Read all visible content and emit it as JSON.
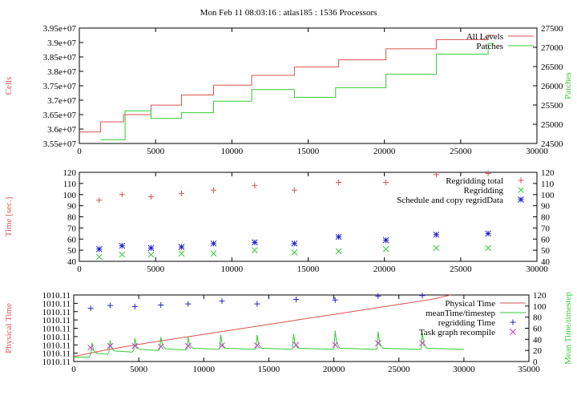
{
  "title": "Mon Feb 11 08:03:16 : atlas185 : 1536 Processors",
  "colors": {
    "red": "#d9534f",
    "green": "#33cc33",
    "blue": "#2222cc",
    "magenta": "#cc33cc",
    "axis": "#000000"
  },
  "chart_data": [
    {
      "type": "line",
      "ylabel": "Cells",
      "y2label": "Patches",
      "xlim": [
        0,
        30000
      ],
      "ylim": [
        35500000,
        39500000
      ],
      "y2lim": [
        24500,
        27500
      ],
      "xticks": [
        "0",
        "5000",
        "10000",
        "15000",
        "20000",
        "25000",
        "30000"
      ],
      "yticks": [
        "3.55e+07",
        "3.6e+07",
        "3.65e+07",
        "3.7e+07",
        "3.75e+07",
        "3.8e+07",
        "3.85e+07",
        "3.9e+07",
        "3.95e+07"
      ],
      "y2ticks": [
        "24500",
        "25000",
        "25500",
        "26000",
        "26500",
        "27000",
        "27500"
      ],
      "grid": false,
      "legend_position": "top-right",
      "series": [
        {
          "name": "All Levels",
          "axis": "y",
          "color": "#d9534f",
          "x": [
            0,
            1400,
            1400,
            2900,
            2900,
            4700,
            4700,
            6700,
            6700,
            8800,
            8800,
            11300,
            11300,
            14100,
            14100,
            17000,
            17000,
            20100,
            20100,
            23400,
            23400,
            26800,
            26800,
            27200
          ],
          "y": [
            35900000,
            35900000,
            36250000,
            36250000,
            36500000,
            36500000,
            36830000,
            36830000,
            37180000,
            37180000,
            37520000,
            37520000,
            37860000,
            37860000,
            38150000,
            38150000,
            38400000,
            38400000,
            38780000,
            38780000,
            39100000,
            39100000,
            39250000,
            39250000
          ]
        },
        {
          "name": "Patches",
          "axis": "y2",
          "color": "#33cc33",
          "x": [
            1400,
            3000,
            3000,
            4700,
            4700,
            6700,
            6700,
            8800,
            8800,
            11300,
            11300,
            14100,
            14100,
            16800,
            16800,
            20100,
            20100,
            23400,
            23400,
            26800,
            26800,
            27200
          ],
          "y": [
            24600,
            24600,
            25350,
            25350,
            25150,
            25150,
            25300,
            25300,
            25600,
            25600,
            25900,
            25900,
            25700,
            25700,
            25950,
            25950,
            26300,
            26300,
            26820,
            26820,
            27100,
            27100
          ]
        }
      ]
    },
    {
      "type": "scatter",
      "ylabel": "Time [sec.]",
      "xlim": [
        0,
        30000
      ],
      "ylim": [
        40,
        120
      ],
      "y2lim": [
        40,
        120
      ],
      "xticks": [
        "0",
        "5000",
        "10000",
        "15000",
        "20000",
        "25000",
        "30000"
      ],
      "yticks": [
        "40",
        "50",
        "60",
        "70",
        "80",
        "90",
        "100",
        "110",
        "120"
      ],
      "y2ticks": [
        "40",
        "50",
        "60",
        "70",
        "80",
        "90",
        "100",
        "110",
        "120"
      ],
      "grid": false,
      "legend_position": "top-right",
      "series": [
        {
          "name": "Regridding total",
          "marker": "plus",
          "color": "#d9534f",
          "x": [
            1300,
            2800,
            4700,
            6700,
            8800,
            11500,
            14100,
            17000,
            20100,
            23400,
            26800
          ],
          "y": [
            95,
            100,
            98,
            101,
            104,
            108,
            104,
            111,
            111,
            118,
            119
          ]
        },
        {
          "name": "Regridding",
          "marker": "cross",
          "color": "#33cc33",
          "x": [
            1300,
            2800,
            4700,
            6700,
            8800,
            11500,
            14100,
            17000,
            20100,
            23400,
            26800
          ],
          "y": [
            44,
            46,
            46,
            47,
            47,
            50,
            48,
            49,
            51,
            52,
            52
          ]
        },
        {
          "name": "Schedule and copy regridData",
          "marker": "star",
          "color": "#2222cc",
          "x": [
            1300,
            2800,
            4700,
            6700,
            8800,
            11500,
            14100,
            17000,
            20100,
            23400,
            26800
          ],
          "y": [
            51,
            54,
            52,
            53,
            56,
            57,
            56,
            62,
            59,
            64,
            65
          ]
        }
      ]
    },
    {
      "type": "line",
      "ylabel": "Physical Time",
      "y2label": "Mean Time/timestep",
      "xlim": [
        0,
        35000
      ],
      "y2lim": [
        0,
        120
      ],
      "xticks": [
        "0",
        "5000",
        "10000",
        "15000",
        "20000",
        "25000",
        "30000",
        "35000"
      ],
      "yticks": [
        "1010.11",
        "1010.11",
        "1010.11",
        "1010.11",
        "1010.11",
        "1010.11",
        "1010.11",
        "1010.11",
        "1010.11"
      ],
      "y2ticks": [
        "0",
        "20",
        "40",
        "60",
        "80",
        "100",
        "120"
      ],
      "grid": false,
      "legend_position": "top-right",
      "series": [
        {
          "name": "Physical Time",
          "axis": "y2",
          "color": "#d9534f",
          "x": [
            0,
            2500,
            5000,
            7500,
            10000,
            12500,
            15000,
            17500,
            20000,
            22500,
            25000,
            27500,
            29000
          ],
          "y": [
            9,
            21,
            31,
            40,
            49,
            58,
            67,
            76,
            85,
            94,
            103,
            112,
            120
          ]
        },
        {
          "name": "meanTime/timestep",
          "axis": "y2",
          "color": "#33cc33",
          "base": [
            8,
            13,
            17,
            20,
            21,
            22,
            22,
            22,
            22,
            22,
            22,
            22
          ],
          "spike_x": [
            1400,
            2800,
            4700,
            6700,
            8800,
            11300,
            14100,
            16900,
            20100,
            23400,
            26800
          ],
          "spike_y": [
            34,
            38,
            42,
            44,
            44,
            48,
            48,
            50,
            56,
            54,
            52
          ],
          "end_x": 30000
        },
        {
          "name": "regridding Time",
          "axis": "y2",
          "marker": "plus",
          "color": "#2222cc",
          "x": [
            1300,
            2800,
            4700,
            6700,
            8800,
            11400,
            14100,
            17100,
            20100,
            23400,
            26800
          ],
          "y": [
            96,
            101,
            99,
            102,
            104,
            109,
            104,
            112,
            111,
            118,
            119
          ]
        },
        {
          "name": "Task graph recompile",
          "axis": "y2",
          "marker": "cross",
          "color": "#cc33cc",
          "x": [
            1300,
            2800,
            4700,
            6700,
            8800,
            11400,
            14100,
            17100,
            20100,
            23400,
            26800
          ],
          "y": [
            25,
            28,
            28,
            27,
            28,
            29,
            29,
            30,
            30,
            33,
            33
          ]
        }
      ]
    }
  ]
}
